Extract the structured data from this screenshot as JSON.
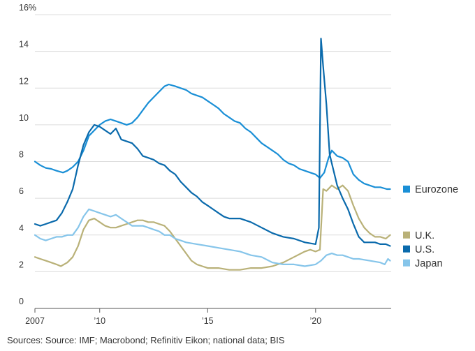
{
  "chart_data": {
    "type": "line",
    "y_unit": "%",
    "ylim": [
      0,
      16
    ],
    "y_ticks": [
      {
        "value": 0,
        "label": "0"
      },
      {
        "value": 2,
        "label": "2"
      },
      {
        "value": 4,
        "label": "4"
      },
      {
        "value": 6,
        "label": "6"
      },
      {
        "value": 8,
        "label": "8"
      },
      {
        "value": 10,
        "label": "10"
      },
      {
        "value": 12,
        "label": "12"
      },
      {
        "value": 14,
        "label": "14"
      },
      {
        "value": 16,
        "label": "16%"
      }
    ],
    "xlim": [
      2007.0,
      2023.5
    ],
    "x_ticks": [
      {
        "value": 2007,
        "label": "2007"
      },
      {
        "value": 2010,
        "label": "’10"
      },
      {
        "value": 2015,
        "label": "’15"
      },
      {
        "value": 2020,
        "label": "’20"
      }
    ],
    "grid": "horizontal",
    "legend_placement": "right, next to line ends",
    "series": [
      {
        "name": "Eurozone",
        "color": "#1a8fd6",
        "points": [
          [
            2007.0,
            8.0
          ],
          [
            2007.25,
            7.8
          ],
          [
            2007.5,
            7.65
          ],
          [
            2007.75,
            7.6
          ],
          [
            2008.0,
            7.5
          ],
          [
            2008.3,
            7.4
          ],
          [
            2008.5,
            7.5
          ],
          [
            2008.75,
            7.7
          ],
          [
            2009.0,
            8.0
          ],
          [
            2009.25,
            8.6
          ],
          [
            2009.5,
            9.4
          ],
          [
            2009.75,
            9.7
          ],
          [
            2010.0,
            10.0
          ],
          [
            2010.25,
            10.2
          ],
          [
            2010.5,
            10.3
          ],
          [
            2010.75,
            10.2
          ],
          [
            2011.0,
            10.1
          ],
          [
            2011.25,
            10.0
          ],
          [
            2011.5,
            10.1
          ],
          [
            2011.75,
            10.4
          ],
          [
            2012.0,
            10.8
          ],
          [
            2012.25,
            11.2
          ],
          [
            2012.5,
            11.5
          ],
          [
            2012.75,
            11.8
          ],
          [
            2013.0,
            12.1
          ],
          [
            2013.2,
            12.2
          ],
          [
            2013.5,
            12.1
          ],
          [
            2013.75,
            12.0
          ],
          [
            2014.0,
            11.9
          ],
          [
            2014.25,
            11.7
          ],
          [
            2014.5,
            11.6
          ],
          [
            2014.75,
            11.5
          ],
          [
            2015.0,
            11.3
          ],
          [
            2015.25,
            11.1
          ],
          [
            2015.5,
            10.9
          ],
          [
            2015.75,
            10.6
          ],
          [
            2016.0,
            10.4
          ],
          [
            2016.25,
            10.2
          ],
          [
            2016.5,
            10.1
          ],
          [
            2016.75,
            9.8
          ],
          [
            2017.0,
            9.6
          ],
          [
            2017.25,
            9.3
          ],
          [
            2017.5,
            9.0
          ],
          [
            2017.75,
            8.8
          ],
          [
            2018.0,
            8.6
          ],
          [
            2018.25,
            8.4
          ],
          [
            2018.5,
            8.1
          ],
          [
            2018.75,
            7.9
          ],
          [
            2019.0,
            7.8
          ],
          [
            2019.25,
            7.6
          ],
          [
            2019.5,
            7.5
          ],
          [
            2019.75,
            7.4
          ],
          [
            2020.0,
            7.3
          ],
          [
            2020.2,
            7.1
          ],
          [
            2020.4,
            7.4
          ],
          [
            2020.6,
            8.2
          ],
          [
            2020.75,
            8.6
          ],
          [
            2021.0,
            8.3
          ],
          [
            2021.25,
            8.2
          ],
          [
            2021.5,
            8.0
          ],
          [
            2021.75,
            7.3
          ],
          [
            2022.0,
            7.0
          ],
          [
            2022.25,
            6.8
          ],
          [
            2022.5,
            6.7
          ],
          [
            2022.75,
            6.6
          ],
          [
            2023.0,
            6.6
          ],
          [
            2023.3,
            6.5
          ],
          [
            2023.45,
            6.5
          ]
        ]
      },
      {
        "name": "U.K.",
        "color": "#b9b178",
        "points": [
          [
            2007.0,
            2.8
          ],
          [
            2007.25,
            2.7
          ],
          [
            2007.5,
            2.6
          ],
          [
            2007.75,
            2.5
          ],
          [
            2008.0,
            2.4
          ],
          [
            2008.2,
            2.3
          ],
          [
            2008.5,
            2.5
          ],
          [
            2008.75,
            2.8
          ],
          [
            2009.0,
            3.4
          ],
          [
            2009.25,
            4.3
          ],
          [
            2009.5,
            4.8
          ],
          [
            2009.75,
            4.9
          ],
          [
            2010.0,
            4.7
          ],
          [
            2010.25,
            4.5
          ],
          [
            2010.5,
            4.4
          ],
          [
            2010.75,
            4.4
          ],
          [
            2011.0,
            4.5
          ],
          [
            2011.25,
            4.6
          ],
          [
            2011.5,
            4.7
          ],
          [
            2011.75,
            4.8
          ],
          [
            2012.0,
            4.8
          ],
          [
            2012.25,
            4.7
          ],
          [
            2012.5,
            4.7
          ],
          [
            2012.75,
            4.6
          ],
          [
            2013.0,
            4.5
          ],
          [
            2013.25,
            4.2
          ],
          [
            2013.5,
            3.8
          ],
          [
            2013.75,
            3.4
          ],
          [
            2014.0,
            3.0
          ],
          [
            2014.25,
            2.6
          ],
          [
            2014.5,
            2.4
          ],
          [
            2014.75,
            2.3
          ],
          [
            2015.0,
            2.2
          ],
          [
            2015.5,
            2.2
          ],
          [
            2016.0,
            2.1
          ],
          [
            2016.5,
            2.1
          ],
          [
            2017.0,
            2.2
          ],
          [
            2017.5,
            2.2
          ],
          [
            2018.0,
            2.3
          ],
          [
            2018.5,
            2.5
          ],
          [
            2019.0,
            2.8
          ],
          [
            2019.5,
            3.1
          ],
          [
            2019.75,
            3.2
          ],
          [
            2020.0,
            3.1
          ],
          [
            2020.2,
            3.2
          ],
          [
            2020.35,
            6.5
          ],
          [
            2020.5,
            6.4
          ],
          [
            2020.75,
            6.7
          ],
          [
            2021.0,
            6.5
          ],
          [
            2021.25,
            6.7
          ],
          [
            2021.5,
            6.4
          ],
          [
            2021.75,
            5.6
          ],
          [
            2022.0,
            4.9
          ],
          [
            2022.25,
            4.4
          ],
          [
            2022.5,
            4.1
          ],
          [
            2022.75,
            3.9
          ],
          [
            2023.0,
            3.9
          ],
          [
            2023.25,
            3.8
          ],
          [
            2023.45,
            4.0
          ]
        ]
      },
      {
        "name": "U.S.",
        "color": "#0a6aac",
        "points": [
          [
            2007.0,
            4.6
          ],
          [
            2007.25,
            4.5
          ],
          [
            2007.5,
            4.6
          ],
          [
            2007.75,
            4.7
          ],
          [
            2008.0,
            4.8
          ],
          [
            2008.25,
            5.2
          ],
          [
            2008.5,
            5.8
          ],
          [
            2008.75,
            6.5
          ],
          [
            2009.0,
            7.8
          ],
          [
            2009.25,
            8.9
          ],
          [
            2009.5,
            9.6
          ],
          [
            2009.75,
            10.0
          ],
          [
            2010.0,
            9.9
          ],
          [
            2010.25,
            9.7
          ],
          [
            2010.5,
            9.5
          ],
          [
            2010.75,
            9.8
          ],
          [
            2011.0,
            9.2
          ],
          [
            2011.25,
            9.1
          ],
          [
            2011.5,
            9.0
          ],
          [
            2011.75,
            8.7
          ],
          [
            2012.0,
            8.3
          ],
          [
            2012.25,
            8.2
          ],
          [
            2012.5,
            8.1
          ],
          [
            2012.75,
            7.9
          ],
          [
            2013.0,
            7.8
          ],
          [
            2013.25,
            7.5
          ],
          [
            2013.5,
            7.3
          ],
          [
            2013.75,
            6.9
          ],
          [
            2014.0,
            6.6
          ],
          [
            2014.25,
            6.3
          ],
          [
            2014.5,
            6.1
          ],
          [
            2014.75,
            5.8
          ],
          [
            2015.0,
            5.6
          ],
          [
            2015.25,
            5.4
          ],
          [
            2015.5,
            5.2
          ],
          [
            2015.75,
            5.0
          ],
          [
            2016.0,
            4.9
          ],
          [
            2016.5,
            4.9
          ],
          [
            2017.0,
            4.7
          ],
          [
            2017.5,
            4.4
          ],
          [
            2018.0,
            4.1
          ],
          [
            2018.5,
            3.9
          ],
          [
            2019.0,
            3.8
          ],
          [
            2019.5,
            3.6
          ],
          [
            2020.0,
            3.5
          ],
          [
            2020.15,
            4.4
          ],
          [
            2020.25,
            14.7
          ],
          [
            2020.35,
            13.2
          ],
          [
            2020.5,
            11.1
          ],
          [
            2020.65,
            8.4
          ],
          [
            2020.75,
            7.9
          ],
          [
            2021.0,
            6.7
          ],
          [
            2021.25,
            6.0
          ],
          [
            2021.5,
            5.4
          ],
          [
            2021.75,
            4.6
          ],
          [
            2022.0,
            3.9
          ],
          [
            2022.25,
            3.6
          ],
          [
            2022.5,
            3.6
          ],
          [
            2022.75,
            3.6
          ],
          [
            2023.0,
            3.5
          ],
          [
            2023.25,
            3.5
          ],
          [
            2023.45,
            3.4
          ]
        ]
      },
      {
        "name": "Japan",
        "color": "#86c5ea",
        "points": [
          [
            2007.0,
            4.0
          ],
          [
            2007.25,
            3.8
          ],
          [
            2007.5,
            3.7
          ],
          [
            2007.75,
            3.8
          ],
          [
            2008.0,
            3.9
          ],
          [
            2008.25,
            3.9
          ],
          [
            2008.5,
            4.0
          ],
          [
            2008.75,
            4.0
          ],
          [
            2009.0,
            4.4
          ],
          [
            2009.25,
            5.0
          ],
          [
            2009.5,
            5.4
          ],
          [
            2009.75,
            5.3
          ],
          [
            2010.0,
            5.2
          ],
          [
            2010.25,
            5.1
          ],
          [
            2010.5,
            5.0
          ],
          [
            2010.75,
            5.1
          ],
          [
            2011.0,
            4.9
          ],
          [
            2011.25,
            4.7
          ],
          [
            2011.5,
            4.5
          ],
          [
            2011.75,
            4.5
          ],
          [
            2012.0,
            4.5
          ],
          [
            2012.25,
            4.4
          ],
          [
            2012.5,
            4.3
          ],
          [
            2012.75,
            4.2
          ],
          [
            2013.0,
            4.0
          ],
          [
            2013.25,
            4.0
          ],
          [
            2013.5,
            3.8
          ],
          [
            2013.75,
            3.7
          ],
          [
            2014.0,
            3.6
          ],
          [
            2014.5,
            3.5
          ],
          [
            2015.0,
            3.4
          ],
          [
            2015.5,
            3.3
          ],
          [
            2016.0,
            3.2
          ],
          [
            2016.5,
            3.1
          ],
          [
            2017.0,
            2.9
          ],
          [
            2017.5,
            2.8
          ],
          [
            2018.0,
            2.5
          ],
          [
            2018.5,
            2.4
          ],
          [
            2019.0,
            2.4
          ],
          [
            2019.5,
            2.3
          ],
          [
            2020.0,
            2.4
          ],
          [
            2020.25,
            2.6
          ],
          [
            2020.5,
            2.9
          ],
          [
            2020.75,
            3.0
          ],
          [
            2021.0,
            2.9
          ],
          [
            2021.25,
            2.9
          ],
          [
            2021.5,
            2.8
          ],
          [
            2021.75,
            2.7
          ],
          [
            2022.0,
            2.7
          ],
          [
            2022.5,
            2.6
          ],
          [
            2023.0,
            2.5
          ],
          [
            2023.2,
            2.4
          ],
          [
            2023.35,
            2.7
          ],
          [
            2023.45,
            2.6
          ]
        ]
      }
    ]
  },
  "source_note": "Sources: Source: IMF; Macrobond; Refinitiv Eikon; national data; BIS"
}
